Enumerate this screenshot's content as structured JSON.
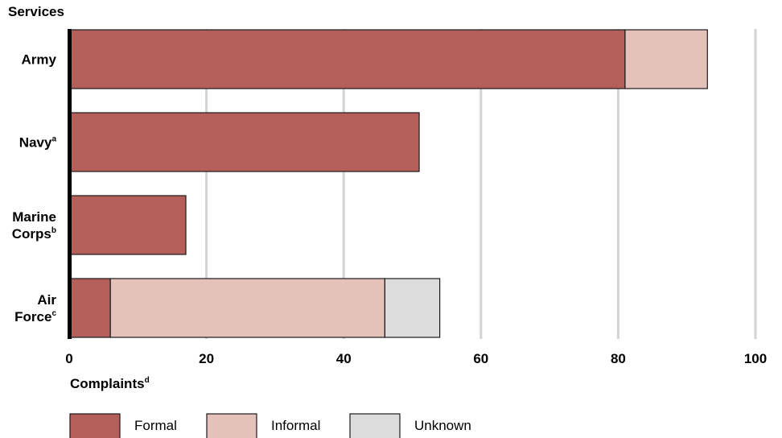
{
  "chart_data": {
    "type": "bar",
    "orientation": "horizontal",
    "stacked": true,
    "y_axis_title": "Services",
    "x_axis_title": "Complaints",
    "x_axis_title_sup": "d",
    "categories": [
      {
        "lines": [
          {
            "text": "Army",
            "sup": ""
          }
        ]
      },
      {
        "lines": [
          {
            "text": "Navy",
            "sup": "a"
          }
        ]
      },
      {
        "lines": [
          {
            "text": "Marine",
            "sup": ""
          },
          {
            "text": "Corps",
            "sup": "b"
          }
        ]
      },
      {
        "lines": [
          {
            "text": "Air",
            "sup": ""
          },
          {
            "text": "Force",
            "sup": "c"
          }
        ]
      }
    ],
    "series": [
      {
        "name": "Formal",
        "color": "#b55f5a",
        "values": [
          81,
          51,
          17,
          6
        ]
      },
      {
        "name": "Informal",
        "color": "#e4c1b9",
        "values": [
          12,
          0,
          0,
          40
        ]
      },
      {
        "name": "Unknown",
        "color": "#dcdcdc",
        "values": [
          0,
          0,
          0,
          8
        ]
      }
    ],
    "xlim": [
      0,
      100
    ],
    "xticks": [
      0,
      20,
      40,
      60,
      80,
      100
    ],
    "grid": true,
    "legend_position": "bottom"
  }
}
